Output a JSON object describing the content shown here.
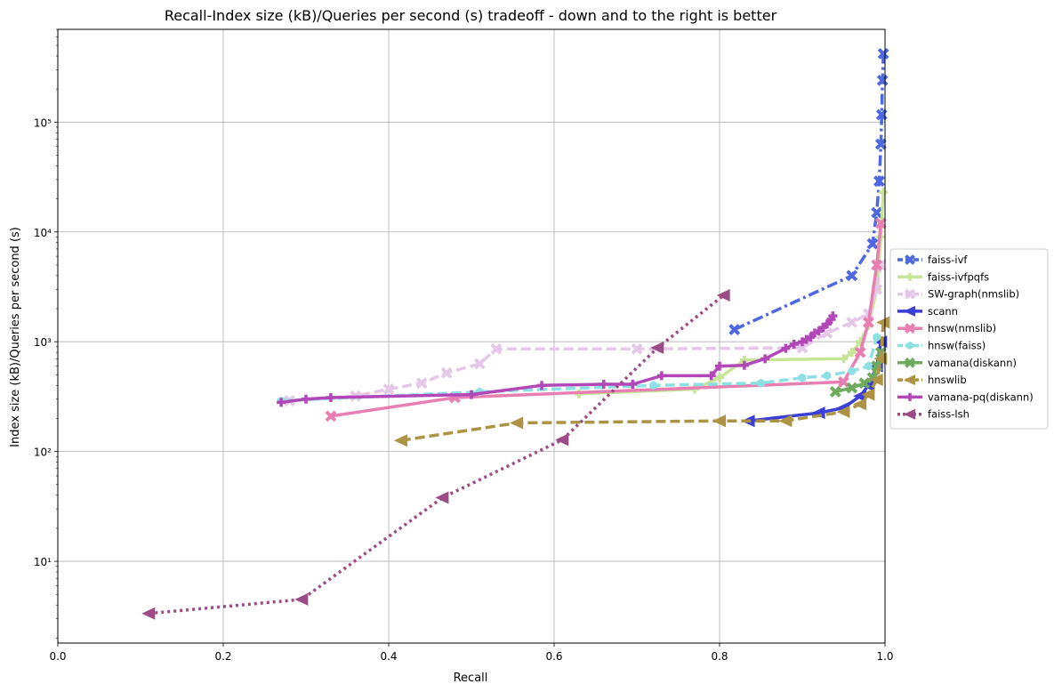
{
  "chart_data": {
    "type": "line",
    "title": "Recall-Index size (kB)/Queries per second (s) tradeoff - down and to the right is better",
    "xlabel": "Recall",
    "ylabel": "Index size (kB)/Queries per second (s)",
    "xlim": [
      0.0,
      1.0
    ],
    "ylim": [
      1.8,
      700000
    ],
    "yscale": "log",
    "grid": true,
    "legend_position": "center right, outside plot",
    "x_ticks": [
      "0.0",
      "0.2",
      "0.4",
      "0.6",
      "0.8",
      "1.0"
    ],
    "y_ticks": [
      {
        "value": 10,
        "label": "10¹"
      },
      {
        "value": 100,
        "label": "10²"
      },
      {
        "value": 1000,
        "label": "10³"
      },
      {
        "value": 10000,
        "label": "10⁴"
      },
      {
        "value": 100000,
        "label": "10⁵"
      }
    ],
    "series": [
      {
        "name": "faiss-ivf",
        "color": "#4d68e0",
        "dash": "dashdot",
        "marker": "X",
        "x": [
          0.818,
          0.96,
          0.985,
          0.99,
          0.993,
          0.995,
          0.996,
          0.997,
          0.998
        ],
        "y": [
          1290,
          4000,
          7800,
          15000,
          29000,
          63000,
          117000,
          240000,
          420000
        ]
      },
      {
        "name": "faiss-ivfpqfs",
        "color": "#c6e597",
        "dash": "solid",
        "marker": "+",
        "x": [
          0.63,
          0.77,
          0.8,
          0.83,
          0.95,
          0.96,
          0.97,
          0.98,
          0.99,
          0.995,
          0.998
        ],
        "y": [
          335,
          370,
          470,
          680,
          700,
          800,
          1000,
          1400,
          3000,
          9000,
          23000
        ]
      },
      {
        "name": "SW-graph(nmslib)",
        "color": "#e5c8e8",
        "dash": "dashed",
        "marker": "X",
        "x": [
          0.28,
          0.36,
          0.4,
          0.44,
          0.47,
          0.51,
          0.53,
          0.7,
          0.9,
          0.93,
          0.96,
          0.98,
          0.99,
          0.995
        ],
        "y": [
          290,
          320,
          370,
          420,
          520,
          630,
          860,
          860,
          880,
          1200,
          1500,
          1800,
          3000,
          5000
        ]
      },
      {
        "name": "scann",
        "color": "#3a3fd6",
        "dash": "solid",
        "marker": "<",
        "x": [
          0.835,
          0.92,
          0.95,
          0.97,
          0.98,
          0.99,
          0.995
        ],
        "y": [
          190,
          225,
          250,
          320,
          400,
          600,
          1000
        ]
      },
      {
        "name": "hnsw(nmslib)",
        "color": "#e77fb2",
        "dash": "solid",
        "marker": "X",
        "x": [
          0.33,
          0.48,
          0.95,
          0.97,
          0.98,
          0.99,
          0.995
        ],
        "y": [
          210,
          310,
          430,
          800,
          1500,
          5000,
          12000
        ]
      },
      {
        "name": "hnsw(faiss)",
        "color": "#8ce0e4",
        "dash": "dashed",
        "marker": "h",
        "x": [
          0.27,
          0.51,
          0.72,
          0.85,
          0.9,
          0.93,
          0.96,
          0.98,
          0.99
        ],
        "y": [
          290,
          350,
          400,
          420,
          470,
          490,
          540,
          600,
          1100
        ]
      },
      {
        "name": "vamana(diskann)",
        "color": "#6eab5e",
        "dash": "solid",
        "marker": "X",
        "x": [
          0.94,
          0.96,
          0.975,
          0.985,
          0.99,
          0.995
        ],
        "y": [
          350,
          380,
          420,
          470,
          600,
          800
        ]
      },
      {
        "name": "hnswlib",
        "color": "#ad9343",
        "dash": "dashed",
        "marker": "<",
        "x": [
          0.415,
          0.555,
          0.8,
          0.88,
          0.95,
          0.97,
          0.98,
          0.99,
          0.995,
          0.998
        ],
        "y": [
          126,
          182,
          190,
          190,
          230,
          270,
          330,
          450,
          700,
          1500
        ]
      },
      {
        "name": "vamana-pq(diskann)",
        "color": "#b247b8",
        "dash": "solid",
        "marker": "+",
        "x": [
          0.27,
          0.3,
          0.33,
          0.5,
          0.585,
          0.66,
          0.695,
          0.73,
          0.79,
          0.8,
          0.83,
          0.855,
          0.88,
          0.89,
          0.9,
          0.905,
          0.91,
          0.915,
          0.92,
          0.925,
          0.93,
          0.935,
          0.937
        ],
        "y": [
          280,
          300,
          310,
          330,
          400,
          410,
          410,
          490,
          490,
          600,
          610,
          700,
          870,
          950,
          1000,
          1050,
          1100,
          1200,
          1250,
          1350,
          1450,
          1600,
          1720
        ]
      },
      {
        "name": "faiss-lsh",
        "color": "#9e4a86",
        "dash": "dotted",
        "marker": "<",
        "x": [
          0.11,
          0.295,
          0.465,
          0.61,
          0.725,
          0.805
        ],
        "y": [
          3.35,
          4.5,
          38,
          128,
          880,
          2650
        ]
      }
    ]
  }
}
